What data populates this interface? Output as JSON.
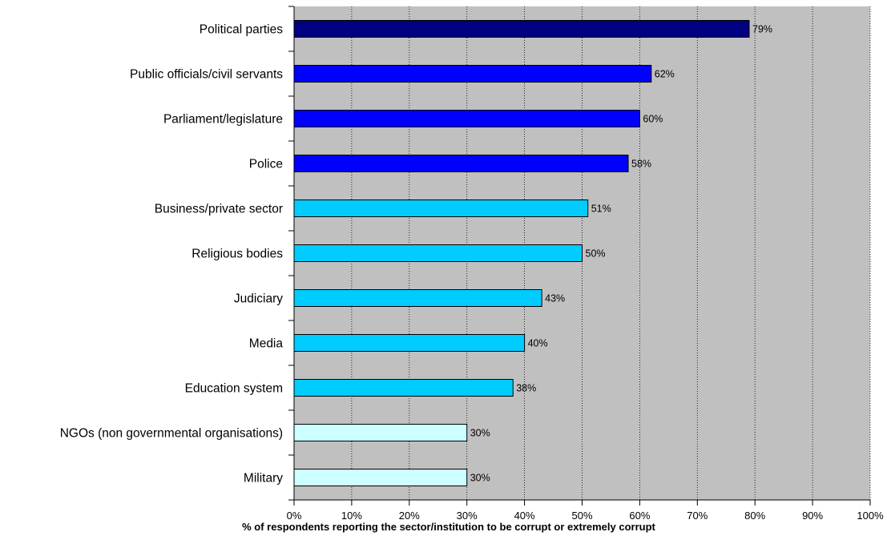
{
  "chart_data": {
    "type": "bar",
    "orientation": "horizontal",
    "categories": [
      "Political parties",
      "Public officials/civil servants",
      "Parliament/legislature",
      "Police",
      "Business/private sector",
      "Religious bodies",
      "Judiciary",
      "Media",
      "Education system",
      "NGOs (non governmental organisations)",
      "Military"
    ],
    "values": [
      79,
      62,
      60,
      58,
      51,
      50,
      43,
      40,
      38,
      30,
      30
    ],
    "value_labels": [
      "79%",
      "62%",
      "60%",
      "58%",
      "51%",
      "50%",
      "43%",
      "40%",
      "38%",
      "30%",
      "30%"
    ],
    "bar_colors": [
      "#000080",
      "#0000ff",
      "#0000ff",
      "#0000ff",
      "#00ccff",
      "#00ccff",
      "#00ccff",
      "#00ccff",
      "#00ccff",
      "#ccffff",
      "#ccffff"
    ],
    "xlim": [
      0,
      100
    ],
    "xticks": [
      0,
      10,
      20,
      30,
      40,
      50,
      60,
      70,
      80,
      90,
      100
    ],
    "xtick_labels": [
      "0%",
      "10%",
      "20%",
      "30%",
      "40%",
      "50%",
      "60%",
      "70%",
      "80%",
      "90%",
      "100%"
    ],
    "xlabel": "% of respondents reporting the sector/institution to be corrupt or extremely corrupt",
    "ylabel": "",
    "title": "",
    "grid": true,
    "plot_background": "#c0c0c0",
    "legend": "none"
  }
}
